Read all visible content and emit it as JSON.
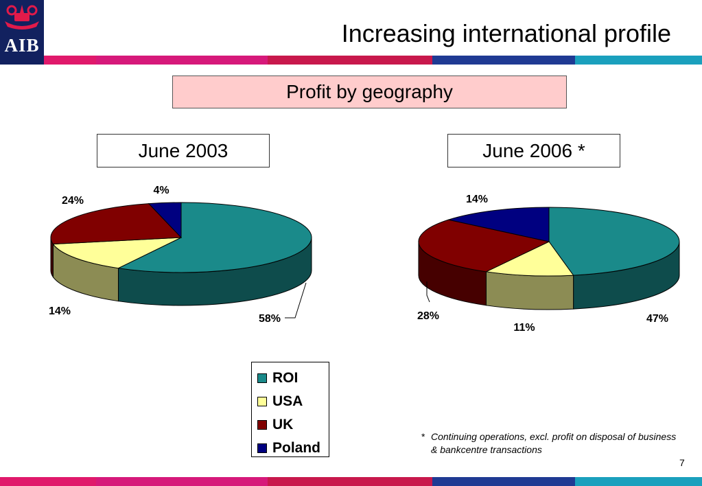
{
  "brand": {
    "name": "AIB",
    "logo_icon": "ark-logo"
  },
  "title": "Increasing international profile",
  "stripe_colors": [
    "#e0196b",
    "#d6197a",
    "#c8184c",
    "#1f3a93",
    "#1aa0bd"
  ],
  "section_title": "Profit by geography",
  "chart_data": [
    {
      "type": "pie",
      "title": "June 2003",
      "categories": [
        "ROI",
        "USA",
        "UK",
        "Poland"
      ],
      "values": [
        58,
        14,
        24,
        4
      ],
      "labels": [
        "58%",
        "14%",
        "24%",
        "4%"
      ]
    },
    {
      "type": "pie",
      "title": "June 2006 *",
      "categories": [
        "ROI",
        "USA",
        "UK",
        "Poland"
      ],
      "values": [
        47,
        11,
        28,
        14
      ],
      "labels": [
        "47%",
        "11%",
        "28%",
        "14%"
      ]
    }
  ],
  "series_colors": {
    "ROI": "#1a8a8a",
    "USA": "#ffff99",
    "UK": "#800000",
    "Poland": "#000080"
  },
  "legend": [
    "ROI",
    "USA",
    "UK",
    "Poland"
  ],
  "footnote": {
    "marker": "*",
    "text": "Continuing operations, excl. profit on disposal of business & bankcentre transactions"
  },
  "page_number": "7"
}
